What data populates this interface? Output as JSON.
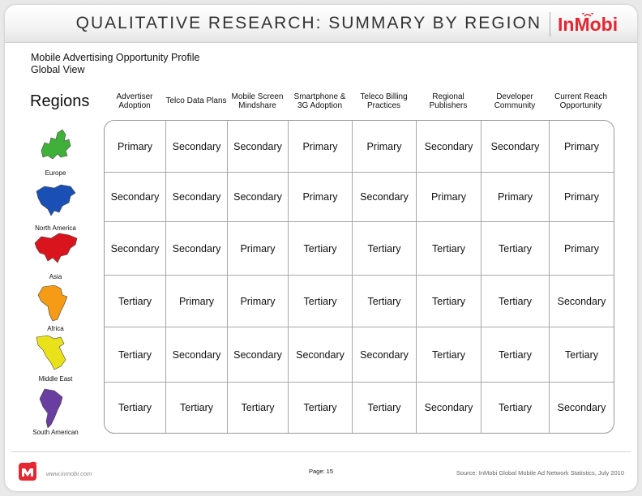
{
  "header": {
    "title": "QUALITATIVE RESEARCH:  SUMMARY BY REGION",
    "logo_text": "InMobi"
  },
  "subtitle": {
    "line1": "Mobile Advertising Opportunity Profile",
    "line2": "Global View"
  },
  "regions_heading": "Regions",
  "columns": [
    "Advertiser Adoption",
    "Telco Data Plans",
    "Mobile Screen Mindshare",
    "Smartphone & 3G Adoption",
    "Teleco Billing Practices",
    "Regional Publishers",
    "Developer Community",
    "Current Reach Opportunity"
  ],
  "rows": [
    {
      "region": "Europe",
      "icon": "europe-map-icon",
      "color": "#3fb13a",
      "values": [
        "Primary",
        "Secondary",
        "Secondary",
        "Primary",
        "Primary",
        "Secondary",
        "Secondary",
        "Primary"
      ]
    },
    {
      "region": "North America",
      "icon": "north-america-map-icon",
      "color": "#1a4fb5",
      "values": [
        "Secondary",
        "Secondary",
        "Secondary",
        "Primary",
        "Secondary",
        "Primary",
        "Primary",
        "Primary"
      ]
    },
    {
      "region": "Asia",
      "icon": "asia-map-icon",
      "color": "#d9141d",
      "values": [
        "Secondary",
        "Secondary",
        "Primary",
        "Tertiary",
        "Tertiary",
        "Tertiary",
        "Tertiary",
        "Primary"
      ]
    },
    {
      "region": "Africa",
      "icon": "africa-map-icon",
      "color": "#f59b16",
      "values": [
        "Tertiary",
        "Primary",
        "Primary",
        "Tertiary",
        "Tertiary",
        "Tertiary",
        "Tertiary",
        "Secondary"
      ]
    },
    {
      "region": "Middle East",
      "icon": "middle-east-map-icon",
      "color": "#e9e21a",
      "values": [
        "Tertiary",
        "Secondary",
        "Secondary",
        "Secondary",
        "Secondary",
        "Tertiary",
        "Tertiary",
        "Tertiary"
      ]
    },
    {
      "region": "South American",
      "icon": "south-america-map-icon",
      "color": "#6a3ea1",
      "values": [
        "Tertiary",
        "Tertiary",
        "Tertiary",
        "Tertiary",
        "Tertiary",
        "Secondary",
        "Tertiary",
        "Secondary"
      ]
    }
  ],
  "footer": {
    "url": "www.inmobi.com",
    "page": "Page: 15",
    "source": "Source:  InMobi Global Mobile Ad Network Statistics, July 2010"
  },
  "colors": {
    "brand_red": "#e3262f",
    "border": "#999999"
  }
}
